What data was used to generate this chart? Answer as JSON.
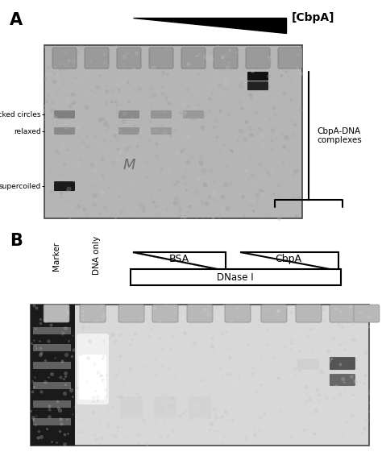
{
  "panel_A_label": "A",
  "panel_B_label": "B",
  "cbpa_label": "[CbpA]",
  "cbpa_dna_label": "CbpA-DNA\ncomplexes",
  "nicked_circles_label": "nicked circles",
  "relaxed_label": "relaxed",
  "supercoiled_label": "supercoiled",
  "marker_label": "Marker",
  "dna_only_label": "DNA only",
  "bsa_label": "BSA",
  "cbpa_b_label": "CbpA",
  "dnase_label": "DNase I",
  "bg_color": "#ffffff",
  "fig_width": 4.74,
  "fig_height": 5.61,
  "dpi": 100
}
